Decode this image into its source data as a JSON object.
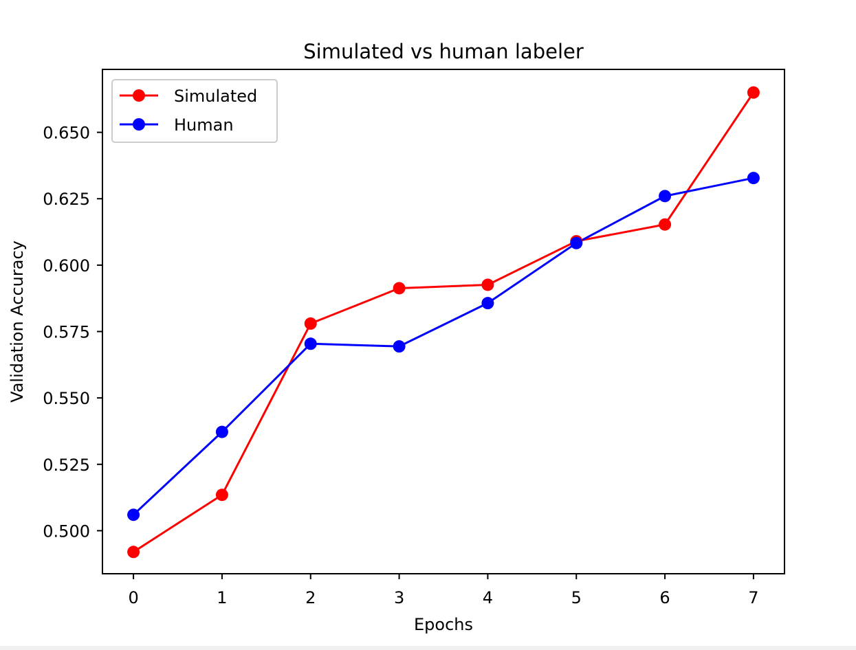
{
  "chart_data": {
    "type": "line",
    "title": "Simulated vs human labeler",
    "xlabel": "Epochs",
    "ylabel": "Validation Accuracy",
    "x": [
      0,
      1,
      2,
      3,
      4,
      5,
      6,
      7
    ],
    "xlim": [
      -0.35,
      7.35
    ],
    "ylim": [
      0.4838,
      0.6737
    ],
    "x_ticks": [
      "0",
      "1",
      "2",
      "3",
      "4",
      "5",
      "6",
      "7"
    ],
    "y_ticks": [
      {
        "value": 0.5,
        "label": "0.500"
      },
      {
        "value": 0.525,
        "label": "0.525"
      },
      {
        "value": 0.55,
        "label": "0.550"
      },
      {
        "value": 0.575,
        "label": "0.575"
      },
      {
        "value": 0.6,
        "label": "0.600"
      },
      {
        "value": 0.625,
        "label": "0.625"
      },
      {
        "value": 0.65,
        "label": "0.650"
      }
    ],
    "grid": false,
    "legend_position": "upper-left",
    "series": [
      {
        "name": "Simulated",
        "color": "#ff0000",
        "marker": "circle",
        "values": [
          0.492,
          0.5135,
          0.578,
          0.5913,
          0.5926,
          0.609,
          0.6153,
          0.665
        ]
      },
      {
        "name": "Human",
        "color": "#0000ff",
        "marker": "circle",
        "values": [
          0.506,
          0.5372,
          0.5704,
          0.5694,
          0.5857,
          0.6083,
          0.626,
          0.6328
        ]
      }
    ]
  }
}
